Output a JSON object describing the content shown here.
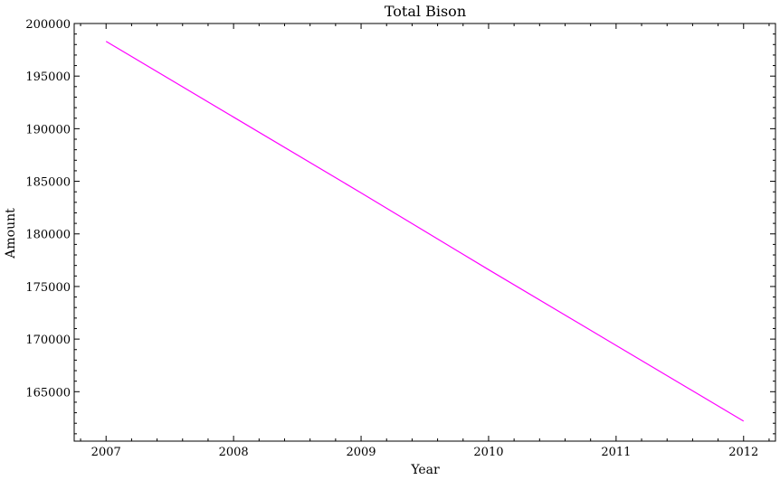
{
  "chart_data": {
    "type": "line",
    "title": "Total Bison",
    "xlabel": "Year",
    "ylabel": "Amount",
    "x": [
      2007,
      2008,
      2009,
      2010,
      2011,
      2012
    ],
    "series": [
      {
        "values": [
          198300,
          191100,
          183900,
          176600,
          169400,
          162200
        ],
        "color": "#ff00ff"
      }
    ],
    "xlim": [
      2006.75,
      2012.25
    ],
    "ylim": [
      160300,
      200000
    ],
    "xticks": [
      2007,
      2008,
      2009,
      2010,
      2011,
      2012
    ],
    "yticks": [
      165000,
      170000,
      175000,
      180000,
      185000,
      190000,
      195000,
      200000
    ],
    "xticklabels": [
      "2007",
      "2008",
      "2009",
      "2010",
      "2011",
      "2012"
    ],
    "yticklabels": [
      "165000",
      "170000",
      "175000",
      "180000",
      "185000",
      "190000",
      "195000",
      "200000"
    ],
    "grid": false,
    "legend": "none"
  }
}
